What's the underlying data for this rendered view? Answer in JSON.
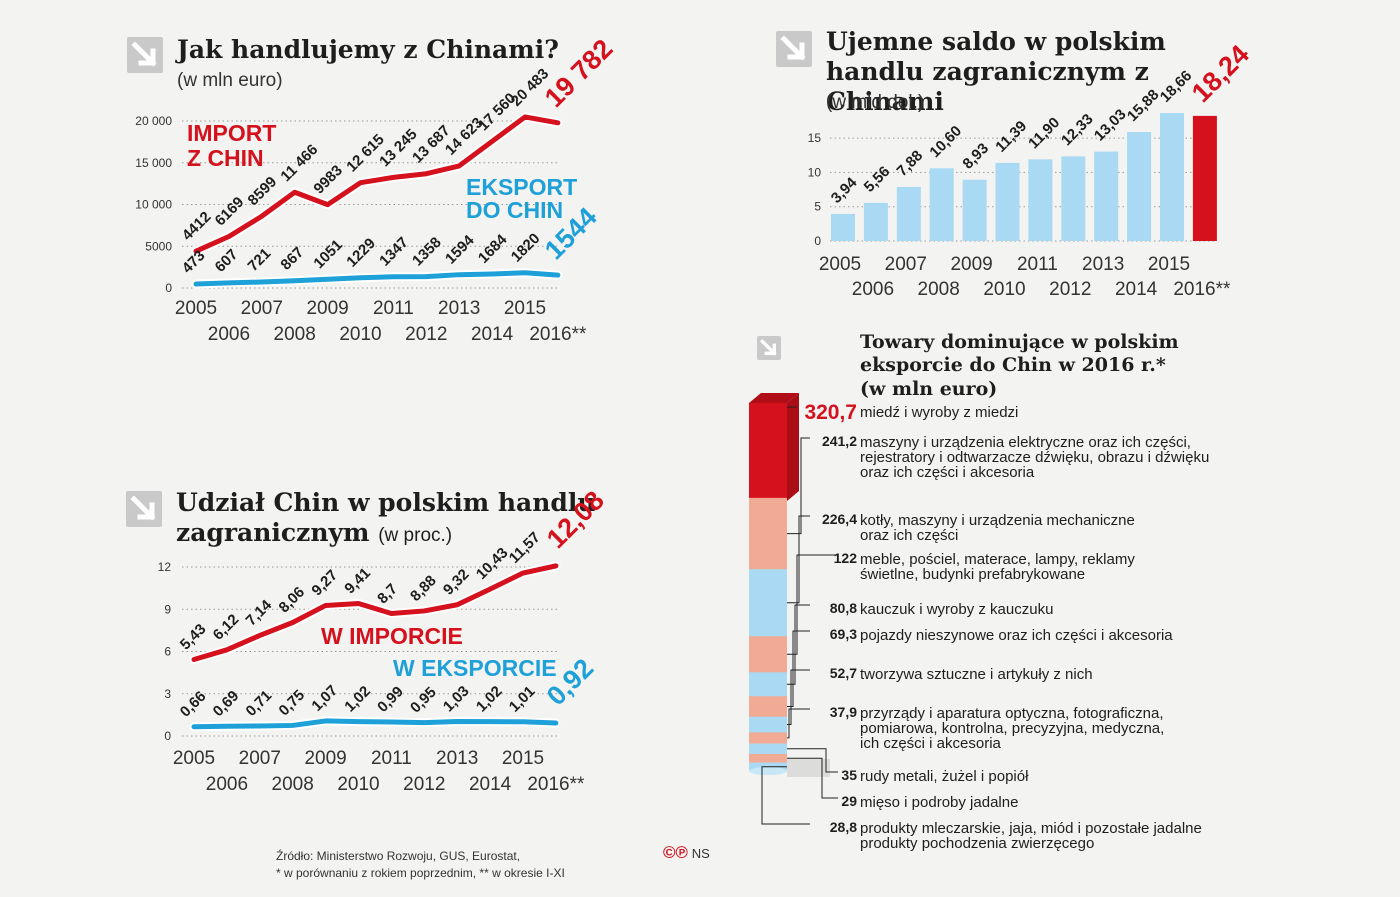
{
  "chart_data": [
    {
      "id": "trade",
      "type": "line",
      "title": "Jak handlujemy z Chinami?",
      "subtitle": "(w mln euro)",
      "x": [
        "2005",
        "2006",
        "2007",
        "2008",
        "2009",
        "2010",
        "2011",
        "2012",
        "2013",
        "2014",
        "2015",
        "2016**"
      ],
      "ylim": [
        0,
        20000
      ],
      "yticks": [
        0,
        5000,
        10000,
        15000,
        20000
      ],
      "ytick_labels": [
        "0",
        "5000",
        "10 000",
        "15 000",
        "20 000"
      ],
      "series": [
        {
          "name": "IMPORT Z CHIN",
          "color": "#d4111d",
          "values": [
            4412,
            6169,
            8599,
            11466,
            9983,
            12615,
            13245,
            13687,
            14623,
            17560,
            20483,
            19782
          ],
          "labels": [
            "4412",
            "6169",
            "8599",
            "11 466",
            "9983",
            "12 615",
            "13 245",
            "13 687",
            "14 623",
            "17 560",
            "20 483",
            "19 782"
          ]
        },
        {
          "name": "EKSPORT DO CHIN",
          "color": "#1ea0d8",
          "values": [
            473,
            607,
            721,
            867,
            1051,
            1229,
            1347,
            1358,
            1594,
            1684,
            1820,
            1544
          ],
          "labels": [
            "473",
            "607",
            "721",
            "867",
            "1051",
            "1229",
            "1347",
            "1358",
            "1594",
            "1684",
            "1820",
            "1544"
          ]
        }
      ],
      "series_label_lines": [
        [
          "IMPORT",
          "Z CHIN"
        ],
        [
          "EKSPORT",
          "DO CHIN"
        ]
      ]
    },
    {
      "id": "balance",
      "type": "bar",
      "title": "Ujemne saldo w polskim handlu zagranicznym z Chinami",
      "subtitle": "(w mld dol.)",
      "categories": [
        "2005",
        "2006",
        "2007",
        "2008",
        "2009",
        "2010",
        "2011",
        "2012",
        "2013",
        "2014",
        "2015",
        "2016**"
      ],
      "values": [
        3.94,
        5.56,
        7.88,
        10.6,
        8.93,
        11.39,
        11.9,
        12.33,
        13.03,
        15.88,
        18.66,
        18.24
      ],
      "labels": [
        "3,94",
        "5,56",
        "7,88",
        "10,60",
        "8,93",
        "11,39",
        "11,90",
        "12,33",
        "13,03",
        "15,88",
        "18,66",
        "18,24"
      ],
      "ylim": [
        0,
        18.66
      ],
      "yticks": [
        0,
        5,
        10,
        15
      ],
      "bar_color": "#a9d9f3",
      "highlight_color": "#d4111d"
    },
    {
      "id": "share",
      "type": "line",
      "title": "Udział Chin w polskim handlu zagranicznym",
      "subtitle": "(w proc.)",
      "x": [
        "2005",
        "2006",
        "2007",
        "2008",
        "2009",
        "2010",
        "2011",
        "2012",
        "2013",
        "2014",
        "2015",
        "2016**"
      ],
      "ylim": [
        0,
        12
      ],
      "yticks": [
        0,
        3,
        6,
        9,
        12
      ],
      "series": [
        {
          "name": "W IMPORCIE",
          "color": "#d4111d",
          "values": [
            5.43,
            6.12,
            7.14,
            8.06,
            9.27,
            9.41,
            8.7,
            8.88,
            9.32,
            10.43,
            11.57,
            12.08
          ],
          "labels": [
            "5,43",
            "6,12",
            "7,14",
            "8,06",
            "9,27",
            "9,41",
            "8,7",
            "8,88",
            "9,32",
            "10,43",
            "11,57",
            "12,08"
          ]
        },
        {
          "name": "W EKSPORCIE",
          "color": "#1ea0d8",
          "values": [
            0.66,
            0.69,
            0.71,
            0.75,
            1.07,
            1.02,
            0.99,
            0.95,
            1.03,
            1.02,
            1.01,
            0.92
          ],
          "labels": [
            "0,66",
            "0,69",
            "0,71",
            "0,75",
            "1,07",
            "1,02",
            "0,99",
            "0,95",
            "1,03",
            "1,02",
            "1,01",
            "0,92"
          ]
        }
      ]
    },
    {
      "id": "export-goods",
      "type": "bar",
      "title": "Towary dominujące w polskim eksporcie do Chin w 2016 r.*",
      "subtitle": "(w mln euro)",
      "items": [
        {
          "value": 320.7,
          "label": "320,7",
          "color": "#d4111d",
          "text": [
            "miedź i wyroby z miedzi"
          ]
        },
        {
          "value": 241.2,
          "label": "241,2",
          "color": "#f1ab95",
          "text": [
            "maszyny i urządzenia elektryczne oraz ich części,",
            "rejestratory i odtwarzacze dźwięku, obrazu i dźwięku",
            "oraz ich części i akcesoria"
          ]
        },
        {
          "value": 226.4,
          "label": "226,4",
          "color": "#a9d9f3",
          "text": [
            "kotły, maszyny i urządzenia mechaniczne",
            "oraz ich części"
          ]
        },
        {
          "value": 122,
          "label": "122",
          "color": "#f1ab95",
          "text": [
            "meble, pościel, materace, lampy, reklamy",
            "świetlne, budynki prefabrykowane"
          ]
        },
        {
          "value": 80.8,
          "label": "80,8",
          "color": "#a9d9f3",
          "text": [
            "kauczuk i wyroby z kauczuku"
          ]
        },
        {
          "value": 69.3,
          "label": "69,3",
          "color": "#f1ab95",
          "text": [
            "pojazdy nieszynowe oraz ich części i akcesoria"
          ]
        },
        {
          "value": 52.7,
          "label": "52,7",
          "color": "#a9d9f3",
          "text": [
            "tworzywa sztuczne i artykuły z nich"
          ]
        },
        {
          "value": 37.9,
          "label": "37,9",
          "color": "#f1ab95",
          "text": [
            "przyrządy i aparatura optyczna, fotograficzna,",
            "pomiarowa, kontrolna, precyzyjna, medyczna,",
            "ich części i akcesoria"
          ]
        },
        {
          "value": 35,
          "label": "35",
          "color": "#a9d9f3",
          "text": [
            "rudy metali, żużel i popiół"
          ]
        },
        {
          "value": 29,
          "label": "29",
          "color": "#f1ab95",
          "text": [
            "mięso i podroby jadalne"
          ]
        },
        {
          "value": 28.8,
          "label": "28,8",
          "color": "#a9d9f3",
          "text": [
            "produkty mleczarskie, jaja, miód i pozostałe jadalne",
            "produkty pochodzenia zwierzęcego"
          ]
        }
      ]
    }
  ],
  "footer": {
    "source": "Źródło: Ministerstwo Rozwoju, GUS, Eurostat,",
    "notes": "* w porównaniu z rokiem poprzednim, ** w okresie I-XI",
    "credit_mark": "©℗",
    "credit": "NS"
  },
  "colors": {
    "red": "#d4111d",
    "blue": "#1ea0d8",
    "lightblue": "#a9d9f3",
    "salmon": "#f1ab95",
    "background": "#f3f3f1"
  },
  "icons": [
    "arrow-down-right-icon"
  ]
}
